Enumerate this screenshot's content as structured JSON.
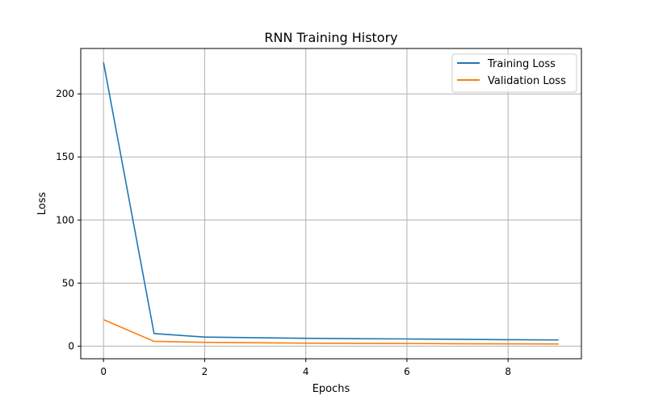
{
  "chart_data": {
    "type": "line",
    "title": "RNN Training History",
    "xlabel": "Epochs",
    "ylabel": "Loss",
    "x": [
      0,
      1,
      2,
      3,
      4,
      5,
      6,
      7,
      8,
      9
    ],
    "xlim": [
      -0.45,
      9.45
    ],
    "ylim": [
      -10,
      236
    ],
    "xticks": [
      0,
      2,
      4,
      6,
      8
    ],
    "yticks": [
      0,
      50,
      100,
      150,
      200
    ],
    "grid": true,
    "legend_position": "top-right",
    "series": [
      {
        "name": "Training Loss",
        "color": "#1f77b4",
        "values": [
          225.0,
          10.0,
          7.2,
          6.7,
          6.2,
          5.9,
          5.7,
          5.4,
          5.1,
          4.9
        ]
      },
      {
        "name": "Validation Loss",
        "color": "#ff7f0e",
        "values": [
          21.0,
          3.8,
          3.0,
          2.7,
          2.4,
          2.2,
          2.1,
          1.9,
          1.8,
          1.7
        ]
      }
    ]
  }
}
